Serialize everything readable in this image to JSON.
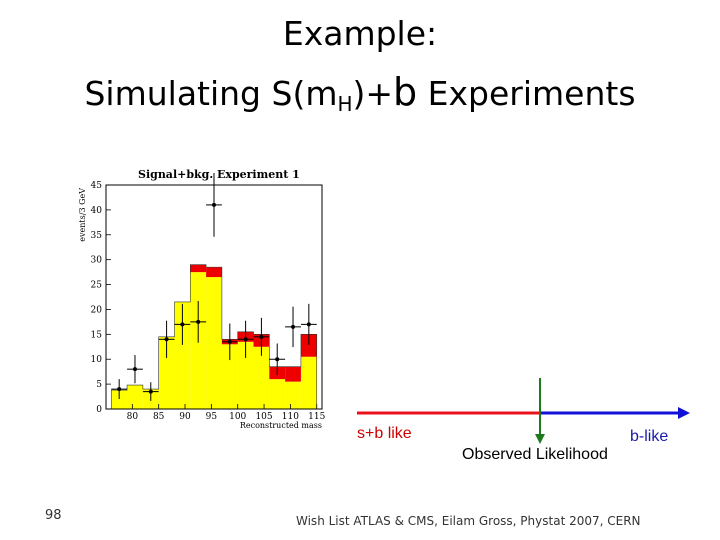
{
  "slide": {
    "title_line1": "Example:",
    "title_line2_prefix": "Simulating S(m",
    "title_line2_sub": "H",
    "title_line2_mid": ")+",
    "title_line2_b": "b",
    "title_line2_suffix": " Experiments",
    "slide_number": "98",
    "footer": "Wish List ATLAS & CMS, Eilam Gross, Phystat 2007, CERN"
  },
  "likelihood_axis": {
    "sb_label": "s+b like",
    "b_label": "b-like",
    "observed_label": "Observed Likelihood",
    "sb_color": "#e8101a",
    "b_color": "#1010d8",
    "observed_color": "#1c7a1c"
  },
  "chart_data": {
    "type": "bar",
    "title": "Signal+bkg. Experiment 1",
    "xlabel": "Reconstructed mass",
    "ylabel": "events/3 GeV",
    "xlim": [
      75,
      116
    ],
    "ylim": [
      0,
      45
    ],
    "xticks": [
      80,
      85,
      90,
      95,
      100,
      105,
      110,
      115
    ],
    "yticks": [
      0,
      5,
      10,
      15,
      20,
      25,
      30,
      35,
      40,
      45
    ],
    "bin_edges": [
      76,
      79,
      82,
      85,
      88,
      91,
      94,
      97,
      100,
      103,
      106,
      109,
      112,
      115
    ],
    "background": [
      3.8,
      4.8,
      4.0,
      14.5,
      21.5,
      27.5,
      26.5,
      13.0,
      13.5,
      12.5,
      6.0,
      5.5,
      10.5
    ],
    "signal_plus_background": [
      3.8,
      4.8,
      4.0,
      14.5,
      21.5,
      29.0,
      28.5,
      14.0,
      15.5,
      15.0,
      8.5,
      8.5,
      15.0
    ],
    "data_points": [
      {
        "x": 77.5,
        "y": 4.0
      },
      {
        "x": 80.5,
        "y": 8.0
      },
      {
        "x": 83.5,
        "y": 3.5
      },
      {
        "x": 86.5,
        "y": 14.0
      },
      {
        "x": 89.5,
        "y": 17.0
      },
      {
        "x": 92.5,
        "y": 17.5
      },
      {
        "x": 95.5,
        "y": 41.0
      },
      {
        "x": 98.5,
        "y": 13.5
      },
      {
        "x": 101.5,
        "y": 14.0
      },
      {
        "x": 104.5,
        "y": 14.5
      },
      {
        "x": 107.5,
        "y": 10.0
      },
      {
        "x": 110.5,
        "y": 16.5
      },
      {
        "x": 113.5,
        "y": 17.0
      }
    ],
    "background_color": "#ffff00",
    "signal_color": "#ee0000"
  }
}
